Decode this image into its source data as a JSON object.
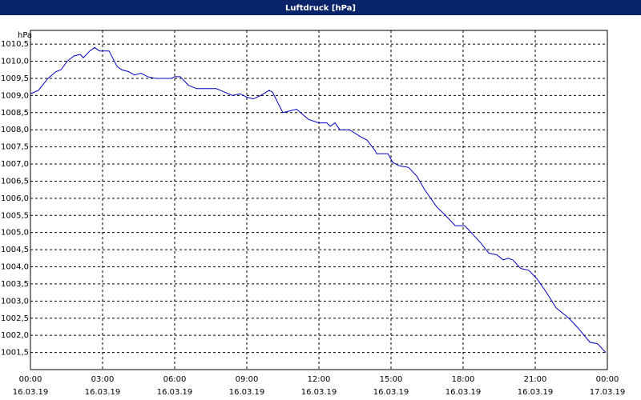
{
  "chart_data": {
    "type": "line",
    "title": "Luftdruck [hPa]",
    "y_label": "hPa",
    "x": [
      0,
      0.33,
      0.73,
      1.07,
      1.27,
      1.53,
      1.8,
      2.07,
      2.2,
      2.47,
      2.67,
      2.87,
      3.27,
      3.6,
      3.8,
      4.07,
      4.33,
      4.6,
      4.87,
      5.2,
      5.87,
      6,
      6.23,
      6.57,
      6.9,
      7.73,
      8.07,
      8.4,
      8.73,
      9,
      9.27,
      9.57,
      9.93,
      10.07,
      10.5,
      11.07,
      11.57,
      12,
      12.33,
      12.47,
      12.67,
      12.87,
      13.27,
      13.73,
      14,
      14.33,
      14.4,
      14.87,
      15.07,
      15.33,
      15.73,
      16.07,
      16.4,
      16.9,
      17.27,
      17.67,
      18.07,
      18.4,
      18.73,
      19.07,
      19.4,
      19.67,
      19.87,
      20.07,
      20.4,
      20.73,
      21.07,
      21.47,
      21.87,
      22.4,
      22.8,
      23.27,
      23.6,
      23.93
    ],
    "series": [
      {
        "name": "Luftdruck",
        "color": "#0000c0",
        "values": [
          1009.05,
          1009.15,
          1009.5,
          1009.7,
          1009.75,
          1010.0,
          1010.15,
          1010.2,
          1010.1,
          1010.3,
          1010.4,
          1010.3,
          1010.3,
          1009.85,
          1009.75,
          1009.7,
          1009.6,
          1009.65,
          1009.55,
          1009.5,
          1009.5,
          1009.55,
          1009.55,
          1009.3,
          1009.2,
          1009.2,
          1009.1,
          1009.0,
          1009.05,
          1008.95,
          1008.9,
          1009.0,
          1009.15,
          1009.1,
          1008.5,
          1008.6,
          1008.3,
          1008.2,
          1008.2,
          1008.1,
          1008.2,
          1008.0,
          1008.0,
          1007.8,
          1007.7,
          1007.4,
          1007.3,
          1007.3,
          1007.05,
          1006.95,
          1006.9,
          1006.65,
          1006.25,
          1005.75,
          1005.5,
          1005.2,
          1005.2,
          1004.95,
          1004.7,
          1004.4,
          1004.35,
          1004.2,
          1004.25,
          1004.2,
          1003.95,
          1003.9,
          1003.65,
          1003.25,
          1002.8,
          1002.5,
          1002.2,
          1001.8,
          1001.75,
          1001.5
        ]
      }
    ],
    "xlim": [
      0,
      24
    ],
    "xticks": [
      {
        "value": 0,
        "label": "00:00"
      },
      {
        "value": 3,
        "label": "03:00"
      },
      {
        "value": 6,
        "label": "06:00"
      },
      {
        "value": 9,
        "label": "09:00"
      },
      {
        "value": 12,
        "label": "12:00"
      },
      {
        "value": 15,
        "label": "15:00"
      },
      {
        "value": 18,
        "label": "18:00"
      },
      {
        "value": 21,
        "label": "21:00"
      },
      {
        "value": 24,
        "label": "00:00"
      }
    ],
    "xtick_dates": [
      "16.03.19",
      "16.03.19",
      "16.03.19",
      "16.03.19",
      "16.03.19",
      "16.03.19",
      "16.03.19",
      "16.03.19",
      "17.03.19"
    ],
    "ylim": [
      1001.0,
      1010.9
    ],
    "yticks": [
      {
        "value": 1001.5,
        "label": "1001,5"
      },
      {
        "value": 1002.0,
        "label": "1002,0"
      },
      {
        "value": 1002.5,
        "label": "1002,5"
      },
      {
        "value": 1003.0,
        "label": "1003,0"
      },
      {
        "value": 1003.5,
        "label": "1003,5"
      },
      {
        "value": 1004.0,
        "label": "1004,0"
      },
      {
        "value": 1004.5,
        "label": "1004,5"
      },
      {
        "value": 1005.0,
        "label": "1005,0"
      },
      {
        "value": 1005.5,
        "label": "1005,5"
      },
      {
        "value": 1006.0,
        "label": "1006,0"
      },
      {
        "value": 1006.5,
        "label": "1006,5"
      },
      {
        "value": 1007.0,
        "label": "1007,0"
      },
      {
        "value": 1007.5,
        "label": "1007,5"
      },
      {
        "value": 1008.0,
        "label": "1008,0"
      },
      {
        "value": 1008.5,
        "label": "1008,5"
      },
      {
        "value": 1009.0,
        "label": "1009,0"
      },
      {
        "value": 1009.5,
        "label": "1009,5"
      },
      {
        "value": 1010.0,
        "label": "1010,0"
      },
      {
        "value": 1010.5,
        "label": "1010,5"
      }
    ],
    "grid": true
  }
}
